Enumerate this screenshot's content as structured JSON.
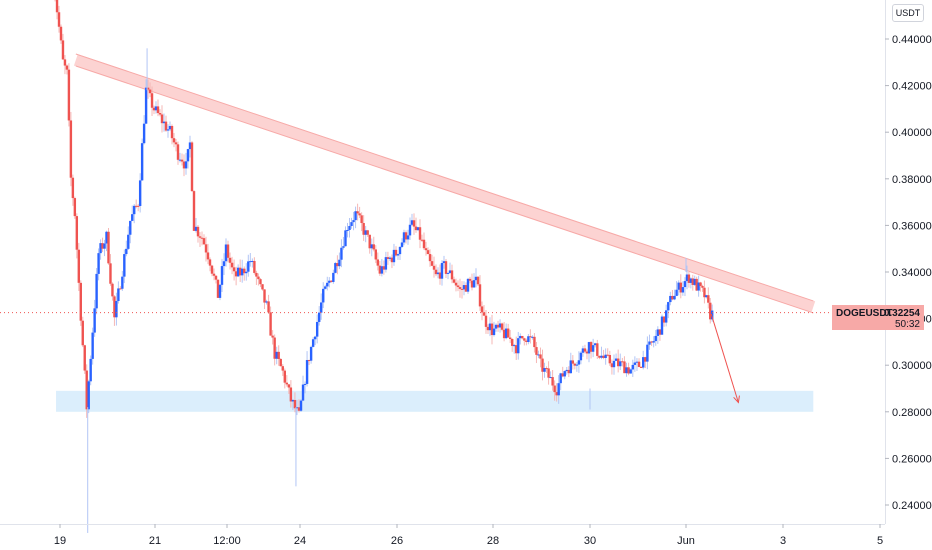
{
  "chart_data": {
    "type": "candlestick",
    "unit_label": "USDT",
    "symbol": "DOGEUSDT",
    "last_price": "0.32254",
    "countdown": "50:32",
    "ylim": [
      0.23,
      0.447
    ],
    "y_ticks": [
      "0.44000",
      "0.42000",
      "0.40000",
      "0.38000",
      "0.36000",
      "0.34000",
      "0.32000",
      "0.30000",
      "0.28000",
      "0.26000",
      "0.24000"
    ],
    "x_ticks": [
      "19",
      "21",
      "12:00",
      "24",
      "26",
      "28",
      "30",
      "Jun",
      "3",
      "5"
    ],
    "xlim": [
      -4,
      410
    ],
    "x_tick_pos": [
      0,
      48,
      84,
      120,
      168,
      216,
      264,
      310,
      360,
      408
    ],
    "colors": {
      "up": "#2962ff",
      "down": "#ef5350",
      "wick_up": "#b2c5f5",
      "wick_down": "#f5b7b5"
    },
    "resistance_line": {
      "from": [
        8,
        0.431
      ],
      "to": [
        375,
        0.325
      ]
    },
    "support_zone": {
      "x_range": [
        -2,
        375
      ],
      "y_range": [
        0.28,
        0.289
      ]
    },
    "projection_arrow": {
      "from": [
        323,
        0.322
      ],
      "to": [
        337,
        0.284
      ]
    },
    "anchors": [
      [
        -4,
        0.475
      ],
      [
        2,
        0.43
      ],
      [
        4,
        0.425
      ],
      [
        6,
        0.38
      ],
      [
        8,
        0.365
      ],
      [
        10,
        0.335
      ],
      [
        14,
        0.282
      ],
      [
        20,
        0.348
      ],
      [
        24,
        0.355
      ],
      [
        28,
        0.32
      ],
      [
        36,
        0.362
      ],
      [
        40,
        0.37
      ],
      [
        44,
        0.418
      ],
      [
        48,
        0.41
      ],
      [
        52,
        0.405
      ],
      [
        56,
        0.4
      ],
      [
        60,
        0.391
      ],
      [
        62,
        0.389
      ],
      [
        64,
        0.385
      ],
      [
        66,
        0.395
      ],
      [
        68,
        0.36
      ],
      [
        72,
        0.355
      ],
      [
        76,
        0.345
      ],
      [
        80,
        0.33
      ],
      [
        84,
        0.35
      ],
      [
        88,
        0.338
      ],
      [
        92,
        0.34
      ],
      [
        96,
        0.345
      ],
      [
        100,
        0.335
      ],
      [
        104,
        0.325
      ],
      [
        108,
        0.305
      ],
      [
        112,
        0.297
      ],
      [
        116,
        0.285
      ],
      [
        120,
        0.278
      ],
      [
        124,
        0.3
      ],
      [
        128,
        0.315
      ],
      [
        132,
        0.33
      ],
      [
        136,
        0.338
      ],
      [
        140,
        0.348
      ],
      [
        144,
        0.36
      ],
      [
        148,
        0.365
      ],
      [
        152,
        0.358
      ],
      [
        156,
        0.35
      ],
      [
        160,
        0.34
      ],
      [
        164,
        0.345
      ],
      [
        168,
        0.348
      ],
      [
        172,
        0.355
      ],
      [
        176,
        0.36
      ],
      [
        180,
        0.355
      ],
      [
        184,
        0.345
      ],
      [
        188,
        0.338
      ],
      [
        192,
        0.342
      ],
      [
        196,
        0.338
      ],
      [
        200,
        0.332
      ],
      [
        204,
        0.335
      ],
      [
        208,
        0.336
      ],
      [
        212,
        0.32
      ],
      [
        216,
        0.315
      ],
      [
        220,
        0.315
      ],
      [
        224,
        0.312
      ],
      [
        228,
        0.308
      ],
      [
        232,
        0.313
      ],
      [
        236,
        0.31
      ],
      [
        240,
        0.3
      ],
      [
        244,
        0.295
      ],
      [
        248,
        0.29
      ],
      [
        252,
        0.298
      ],
      [
        256,
        0.301
      ],
      [
        260,
        0.305
      ],
      [
        264,
        0.309
      ],
      [
        268,
        0.306
      ],
      [
        272,
        0.302
      ],
      [
        276,
        0.301
      ],
      [
        280,
        0.3
      ],
      [
        284,
        0.298
      ],
      [
        288,
        0.3
      ],
      [
        292,
        0.306
      ],
      [
        296,
        0.312
      ],
      [
        300,
        0.32
      ],
      [
        304,
        0.33
      ],
      [
        308,
        0.334
      ],
      [
        312,
        0.338
      ],
      [
        316,
        0.334
      ],
      [
        320,
        0.33
      ],
      [
        323,
        0.322
      ]
    ]
  }
}
